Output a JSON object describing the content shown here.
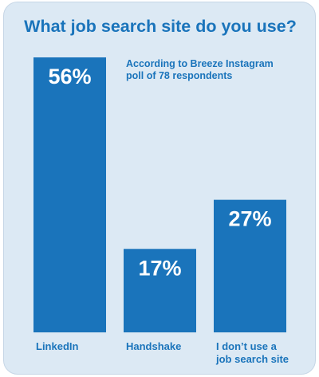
{
  "chart_data": {
    "type": "bar",
    "title": "What job search site do you use?",
    "annotation": [
      "According to Breeze Instagram",
      "poll of 78 respondents"
    ],
    "categories": [
      [
        "LinkedIn"
      ],
      [
        "Handshake"
      ],
      [
        "I don’t use a",
        "job search site"
      ]
    ],
    "values": [
      56,
      17,
      27
    ],
    "value_labels": [
      "56%",
      "17%",
      "27%"
    ],
    "unit": "%",
    "ylim": [
      0,
      56
    ],
    "grid": false,
    "legend": "none",
    "bar_color": "#1a74bb",
    "text_color": "#1a74bb",
    "background_color": "#dce9f4"
  }
}
